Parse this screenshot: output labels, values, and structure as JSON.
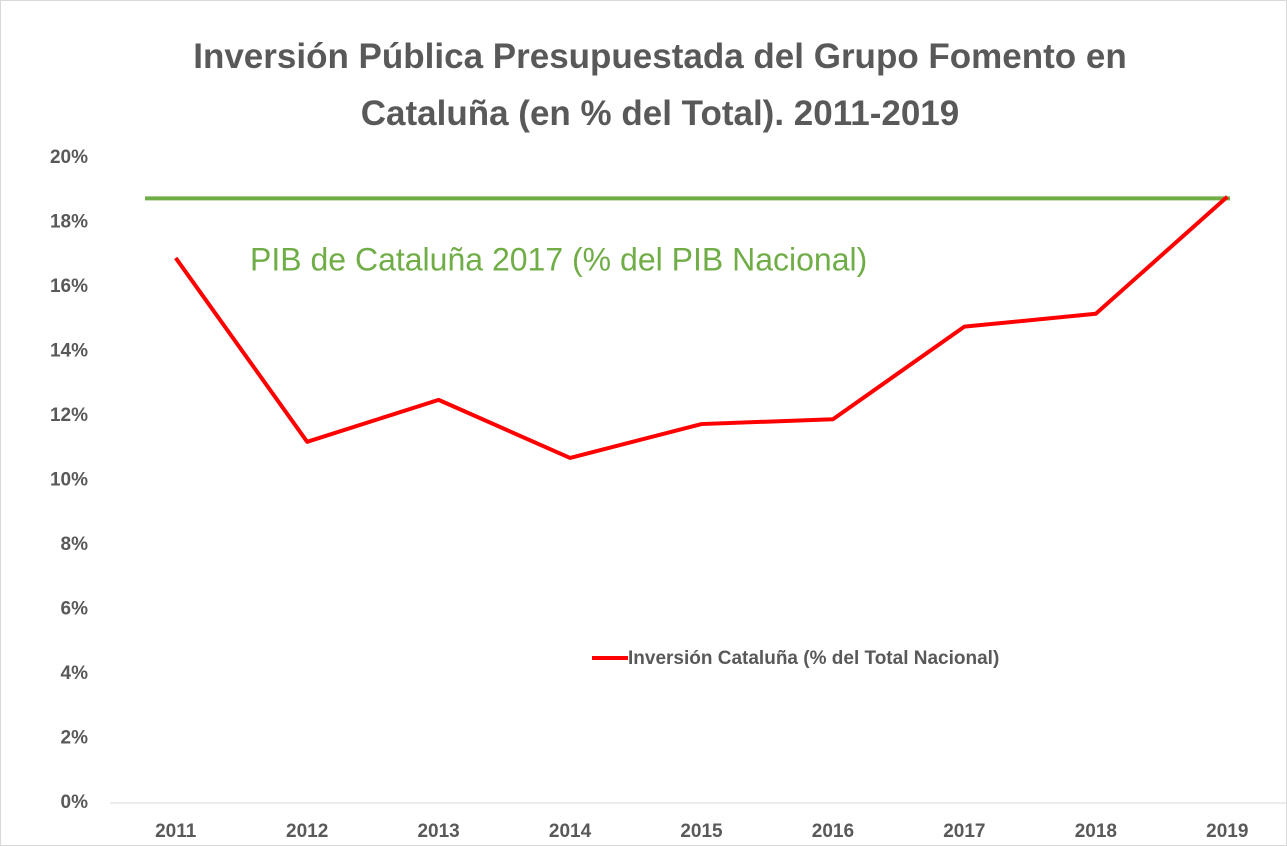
{
  "chart_data": {
    "type": "line",
    "title": "Inversión Pública Presupuestada del Grupo Fomento en Cataluña (en % del Total). 2011-2019",
    "categories": [
      "2011",
      "2012",
      "2013",
      "2014",
      "2015",
      "2016",
      "2017",
      "2018",
      "2019"
    ],
    "series": [
      {
        "name": "Inversión Cataluña (% del Total Nacional)",
        "color": "#ff0000",
        "values": [
          16.9,
          11.2,
          12.5,
          10.7,
          11.75,
          11.9,
          14.77,
          15.17,
          18.8
        ]
      }
    ],
    "reference_line": {
      "label": "PIB de Cataluña 2017 (% del PIB Nacional)",
      "value": 18.75,
      "color": "#70ad47"
    },
    "ylim": [
      0,
      20
    ],
    "yticks": [
      {
        "value": 0,
        "label": "0%"
      },
      {
        "value": 2,
        "label": "2%"
      },
      {
        "value": 4,
        "label": "4%"
      },
      {
        "value": 6,
        "label": "6%"
      },
      {
        "value": 8,
        "label": "8%"
      },
      {
        "value": 10,
        "label": "10%"
      },
      {
        "value": 12,
        "label": "12%"
      },
      {
        "value": 14,
        "label": "14%"
      },
      {
        "value": 16,
        "label": "16%"
      },
      {
        "value": 18,
        "label": "18%"
      },
      {
        "value": 20,
        "label": "20%"
      }
    ],
    "grid": false
  }
}
